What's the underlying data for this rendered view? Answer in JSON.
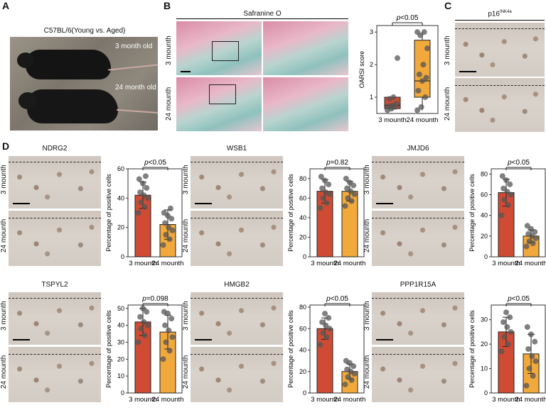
{
  "panels": {
    "a": {
      "letter": "A",
      "title": "C57BL/6(Young vs. Aged)",
      "young_label": "3 month old",
      "aged_label": "24 month old"
    },
    "b": {
      "letter": "B",
      "stain": "Safranine O",
      "row1": "3 mounth",
      "row2": "24 mounth"
    },
    "c": {
      "letter": "C",
      "marker": "p16",
      "marker_sup": "INK4a",
      "row1": "3 mounth",
      "row2": "24 mounth"
    },
    "d": {
      "letter": "D",
      "row1": "3 mounth",
      "row2": "24 mounth"
    }
  },
  "ihc_titles": [
    "NDRG2",
    "WSB1",
    "JMJD6",
    "TSPYL2",
    "HMGB2",
    "PPP1R15A"
  ],
  "colors": {
    "young": "#cf4b33",
    "aged": "#f2a93b",
    "dot": "#555555"
  },
  "chart_data": [
    {
      "type": "box",
      "panel": "B",
      "ylabel": "OARSI score",
      "categories": [
        "3 mounth",
        "24 mounth"
      ],
      "ylim": [
        0.5,
        3.2
      ],
      "yticks": [
        1,
        2,
        3
      ],
      "pvalue": "p<0.05",
      "boxes": [
        {
          "q1": 0.65,
          "median": 0.75,
          "q3": 1.0,
          "min": 0.6,
          "max": 1.0
        },
        {
          "q1": 1.0,
          "median": 1.5,
          "q3": 2.75,
          "min": 0.6,
          "max": 3.0
        }
      ],
      "points": [
        [
          0.6,
          0.65,
          0.7,
          0.72,
          0.75,
          0.8,
          0.95,
          1.0,
          2.2
        ],
        [
          0.6,
          0.7,
          1.0,
          1.2,
          1.5,
          1.6,
          1.7,
          2.0,
          2.5,
          2.9,
          3.0,
          3.0
        ]
      ]
    },
    {
      "type": "bar",
      "panel": "D",
      "gene": "NDRG2",
      "ylabel": "Percentage of positive cells",
      "categories": [
        "3 mounth",
        "24 mounth"
      ],
      "values": [
        42,
        22
      ],
      "errors": [
        9,
        10
      ],
      "ylim": [
        0,
        60
      ],
      "yticks": [
        0,
        20,
        40,
        60
      ],
      "pvalue": "p<0.05",
      "points": [
        [
          30,
          34,
          37,
          40,
          42,
          44,
          47,
          50,
          53,
          55
        ],
        [
          8,
          12,
          15,
          18,
          20,
          23,
          26,
          28,
          30,
          33
        ]
      ]
    },
    {
      "type": "bar",
      "panel": "D",
      "gene": "WSB1",
      "ylabel": "Percentage of positive cells",
      "categories": [
        "3 mounth",
        "24 mounth"
      ],
      "values": [
        67,
        67
      ],
      "errors": [
        12,
        10
      ],
      "ylim": [
        0,
        90
      ],
      "yticks": [
        0,
        20,
        40,
        60,
        80
      ],
      "pvalue": "p=0.82",
      "points": [
        [
          50,
          55,
          60,
          64,
          66,
          70,
          74,
          78,
          82
        ],
        [
          52,
          57,
          60,
          64,
          67,
          70,
          73,
          76,
          80
        ]
      ]
    },
    {
      "type": "bar",
      "panel": "D",
      "gene": "JMJD6",
      "ylabel": "Percentage of positive cells",
      "categories": [
        "3 mounth",
        "24 mounth"
      ],
      "values": [
        62,
        20
      ],
      "errors": [
        13,
        6
      ],
      "ylim": [
        0,
        85
      ],
      "yticks": [
        0,
        20,
        40,
        60,
        80
      ],
      "pvalue": "p<0.05",
      "points": [
        [
          40,
          50,
          55,
          60,
          63,
          66,
          70,
          74,
          78
        ],
        [
          10,
          13,
          15,
          18,
          20,
          22,
          24,
          27,
          30
        ]
      ]
    },
    {
      "type": "bar",
      "panel": "D",
      "gene": "TSPYL2",
      "ylabel": "Percentage of positive cells",
      "categories": [
        "3 mounth",
        "24 mounth"
      ],
      "values": [
        42,
        36
      ],
      "errors": [
        8,
        10
      ],
      "ylim": [
        0,
        52
      ],
      "yticks": [
        0,
        10,
        20,
        30,
        40,
        50
      ],
      "pvalue": "p=0.098",
      "points": [
        [
          30,
          34,
          38,
          40,
          42,
          45,
          48,
          50
        ],
        [
          20,
          25,
          30,
          33,
          37,
          40,
          44,
          47,
          48
        ]
      ]
    },
    {
      "type": "bar",
      "panel": "D",
      "gene": "HMGB2",
      "ylabel": "Percentage of positive cells",
      "categories": [
        "3 mounth",
        "24 mounth"
      ],
      "values": [
        60,
        20
      ],
      "errors": [
        10,
        7
      ],
      "ylim": [
        0,
        82
      ],
      "yticks": [
        0,
        20,
        40,
        60,
        80
      ],
      "pvalue": "p<0.05",
      "points": [
        [
          45,
          52,
          56,
          60,
          63,
          66,
          70,
          74
        ],
        [
          8,
          12,
          15,
          18,
          20,
          22,
          25,
          28,
          30
        ]
      ]
    },
    {
      "type": "bar",
      "panel": "D",
      "gene": "PPP1R15A",
      "ylabel": "Percentage of positive cells",
      "categories": [
        "3 mounth",
        "24 mounth"
      ],
      "values": [
        25,
        16
      ],
      "errors": [
        6,
        8
      ],
      "ylim": [
        0,
        36
      ],
      "yticks": [
        0,
        10,
        20,
        30
      ],
      "pvalue": "p<0.05",
      "points": [
        [
          17,
          20,
          23,
          25,
          27,
          29,
          31,
          33
        ],
        [
          3,
          7,
          10,
          13,
          15,
          18,
          21,
          24,
          27
        ]
      ]
    }
  ]
}
